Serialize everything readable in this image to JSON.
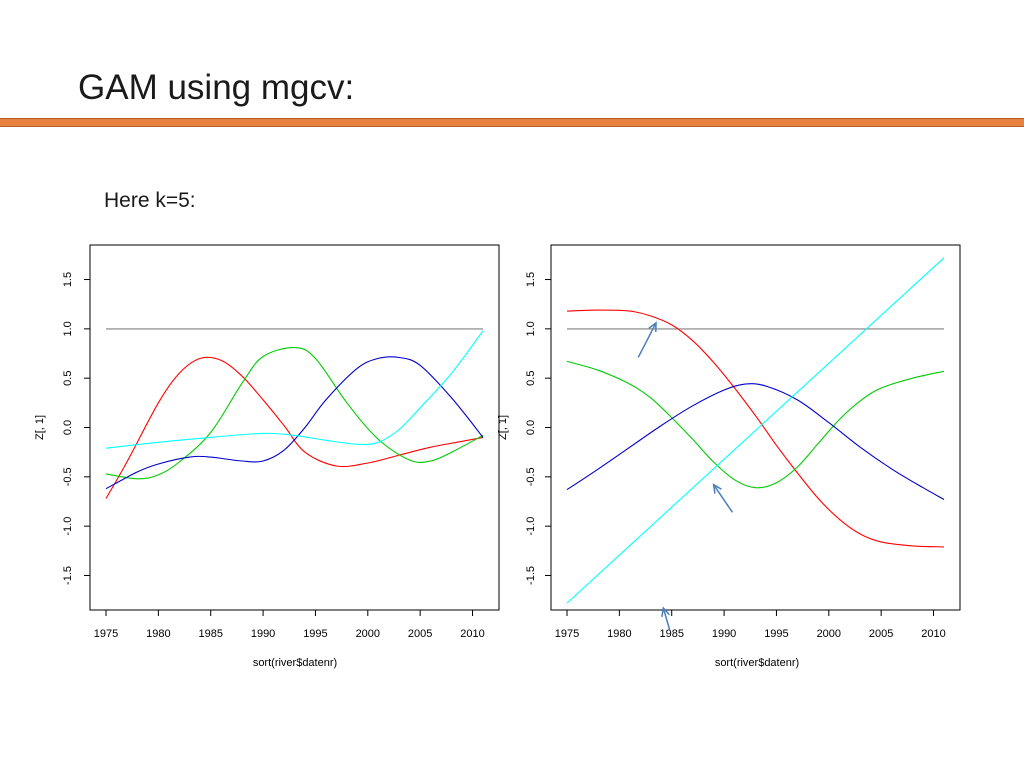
{
  "slide": {
    "title": "GAM using mgcv:",
    "subtitle": "Here k=5:"
  },
  "chart_data": [
    {
      "type": "line",
      "xlabel": "sort(river$datenr)",
      "ylabel": "Z[, 1]",
      "xlim": [
        1975,
        2011
      ],
      "ylim": [
        -1.85,
        1.85
      ],
      "xticks": [
        1975,
        1980,
        1985,
        1990,
        1995,
        2000,
        2005,
        2010
      ],
      "yticks": [
        -1.5,
        -1.0,
        -0.5,
        0.0,
        0.5,
        1.0,
        1.5
      ],
      "ytick_labels": [
        "-1.5",
        "-1.0",
        "-0.5",
        "0.0",
        "0.5",
        "1.0",
        "1.5"
      ],
      "grid": false,
      "series": [
        {
          "color": "#808080",
          "x": [
            1975,
            2011
          ],
          "y": [
            1.0,
            1.0
          ]
        },
        {
          "color": "#ff0000",
          "x": [
            1975,
            1977,
            1980,
            1982,
            1984,
            1986,
            1988,
            1990,
            1992,
            1994,
            1997,
            2000,
            2003,
            2006,
            2009,
            2011
          ],
          "y": [
            -0.72,
            -0.35,
            0.25,
            0.55,
            0.7,
            0.68,
            0.52,
            0.28,
            0.02,
            -0.25,
            -0.39,
            -0.36,
            -0.28,
            -0.2,
            -0.14,
            -0.1
          ]
        },
        {
          "color": "#00cc00",
          "x": [
            1975,
            1978,
            1980,
            1982,
            1985,
            1988,
            1990,
            1993,
            1995,
            1998,
            2001,
            2004,
            2006,
            2008,
            2011
          ],
          "y": [
            -0.47,
            -0.52,
            -0.48,
            -0.35,
            -0.05,
            0.45,
            0.72,
            0.81,
            0.7,
            0.25,
            -0.12,
            -0.33,
            -0.34,
            -0.25,
            -0.08
          ]
        },
        {
          "color": "#0000cc",
          "x": [
            1975,
            1978,
            1980,
            1983,
            1985,
            1988,
            1990,
            1992,
            1994,
            1996,
            1999,
            2001,
            2003,
            2005,
            2008,
            2011
          ],
          "y": [
            -0.62,
            -0.45,
            -0.37,
            -0.3,
            -0.3,
            -0.34,
            -0.34,
            -0.23,
            0.0,
            0.28,
            0.6,
            0.7,
            0.71,
            0.63,
            0.3,
            -0.1
          ]
        },
        {
          "color": "#00ffff",
          "x": [
            1975,
            1980,
            1985,
            1990,
            1993,
            1996,
            1999,
            2001,
            2003,
            2005,
            2008,
            2011
          ],
          "y": [
            -0.21,
            -0.15,
            -0.1,
            -0.06,
            -0.08,
            -0.13,
            -0.17,
            -0.15,
            -0.02,
            0.2,
            0.55,
            0.98
          ]
        }
      ]
    },
    {
      "type": "line",
      "xlabel": "sort(river$datenr)",
      "ylabel": "Z[, 1]",
      "xlim": [
        1975,
        2011
      ],
      "ylim": [
        -1.85,
        1.85
      ],
      "xticks": [
        1975,
        1980,
        1985,
        1990,
        1995,
        2000,
        2005,
        2010
      ],
      "yticks": [
        -1.5,
        -1.0,
        -0.5,
        0.0,
        0.5,
        1.0,
        1.5
      ],
      "ytick_labels": [
        "-1.5",
        "-1.0",
        "-0.5",
        "0.0",
        "0.5",
        "1.0",
        "1.5"
      ],
      "grid": false,
      "series": [
        {
          "color": "#808080",
          "x": [
            1975,
            2011
          ],
          "y": [
            1.0,
            1.0
          ]
        },
        {
          "color": "#ff0000",
          "x": [
            1975,
            1978,
            1981,
            1983,
            1985,
            1987,
            1989,
            1991,
            1993,
            1995,
            1997,
            1999,
            2001,
            2003,
            2005,
            2008,
            2011
          ],
          "y": [
            1.18,
            1.19,
            1.18,
            1.13,
            1.04,
            0.88,
            0.66,
            0.4,
            0.12,
            -0.18,
            -0.46,
            -0.72,
            -0.93,
            -1.08,
            -1.16,
            -1.2,
            -1.21
          ]
        },
        {
          "color": "#00cc00",
          "x": [
            1975,
            1978,
            1981,
            1983,
            1985,
            1987,
            1989,
            1991,
            1993,
            1995,
            1997,
            1999,
            2001,
            2003,
            2005,
            2008,
            2011
          ],
          "y": [
            0.67,
            0.58,
            0.44,
            0.3,
            0.1,
            -0.12,
            -0.35,
            -0.53,
            -0.61,
            -0.56,
            -0.4,
            -0.16,
            0.08,
            0.27,
            0.4,
            0.5,
            0.57
          ]
        },
        {
          "color": "#0000cc",
          "x": [
            1975,
            1978,
            1981,
            1984,
            1987,
            1990,
            1992,
            1994,
            1997,
            2000,
            2003,
            2006,
            2009,
            2011
          ],
          "y": [
            -0.63,
            -0.42,
            -0.2,
            0.02,
            0.22,
            0.38,
            0.44,
            0.42,
            0.28,
            0.05,
            -0.2,
            -0.42,
            -0.61,
            -0.73
          ]
        },
        {
          "color": "#00ffff",
          "x": [
            1975,
            2011
          ],
          "y": [
            -1.78,
            1.72
          ]
        }
      ]
    }
  ],
  "annotations": {
    "arrow_color": "#4a7ebb",
    "arrows": [
      {
        "icon": "arrow-icon",
        "chart": 1,
        "from": [
          1981.8,
          0.71
        ],
        "to": [
          1983.5,
          1.06
        ]
      },
      {
        "icon": "arrow-icon",
        "chart": 1,
        "from": [
          1990.8,
          -0.86
        ],
        "to": [
          1989.0,
          -0.58
        ]
      },
      {
        "icon": "arrow-icon",
        "chart": 1,
        "from": [
          1984.8,
          -2.05
        ],
        "to": [
          1984.2,
          -1.83
        ]
      }
    ]
  }
}
